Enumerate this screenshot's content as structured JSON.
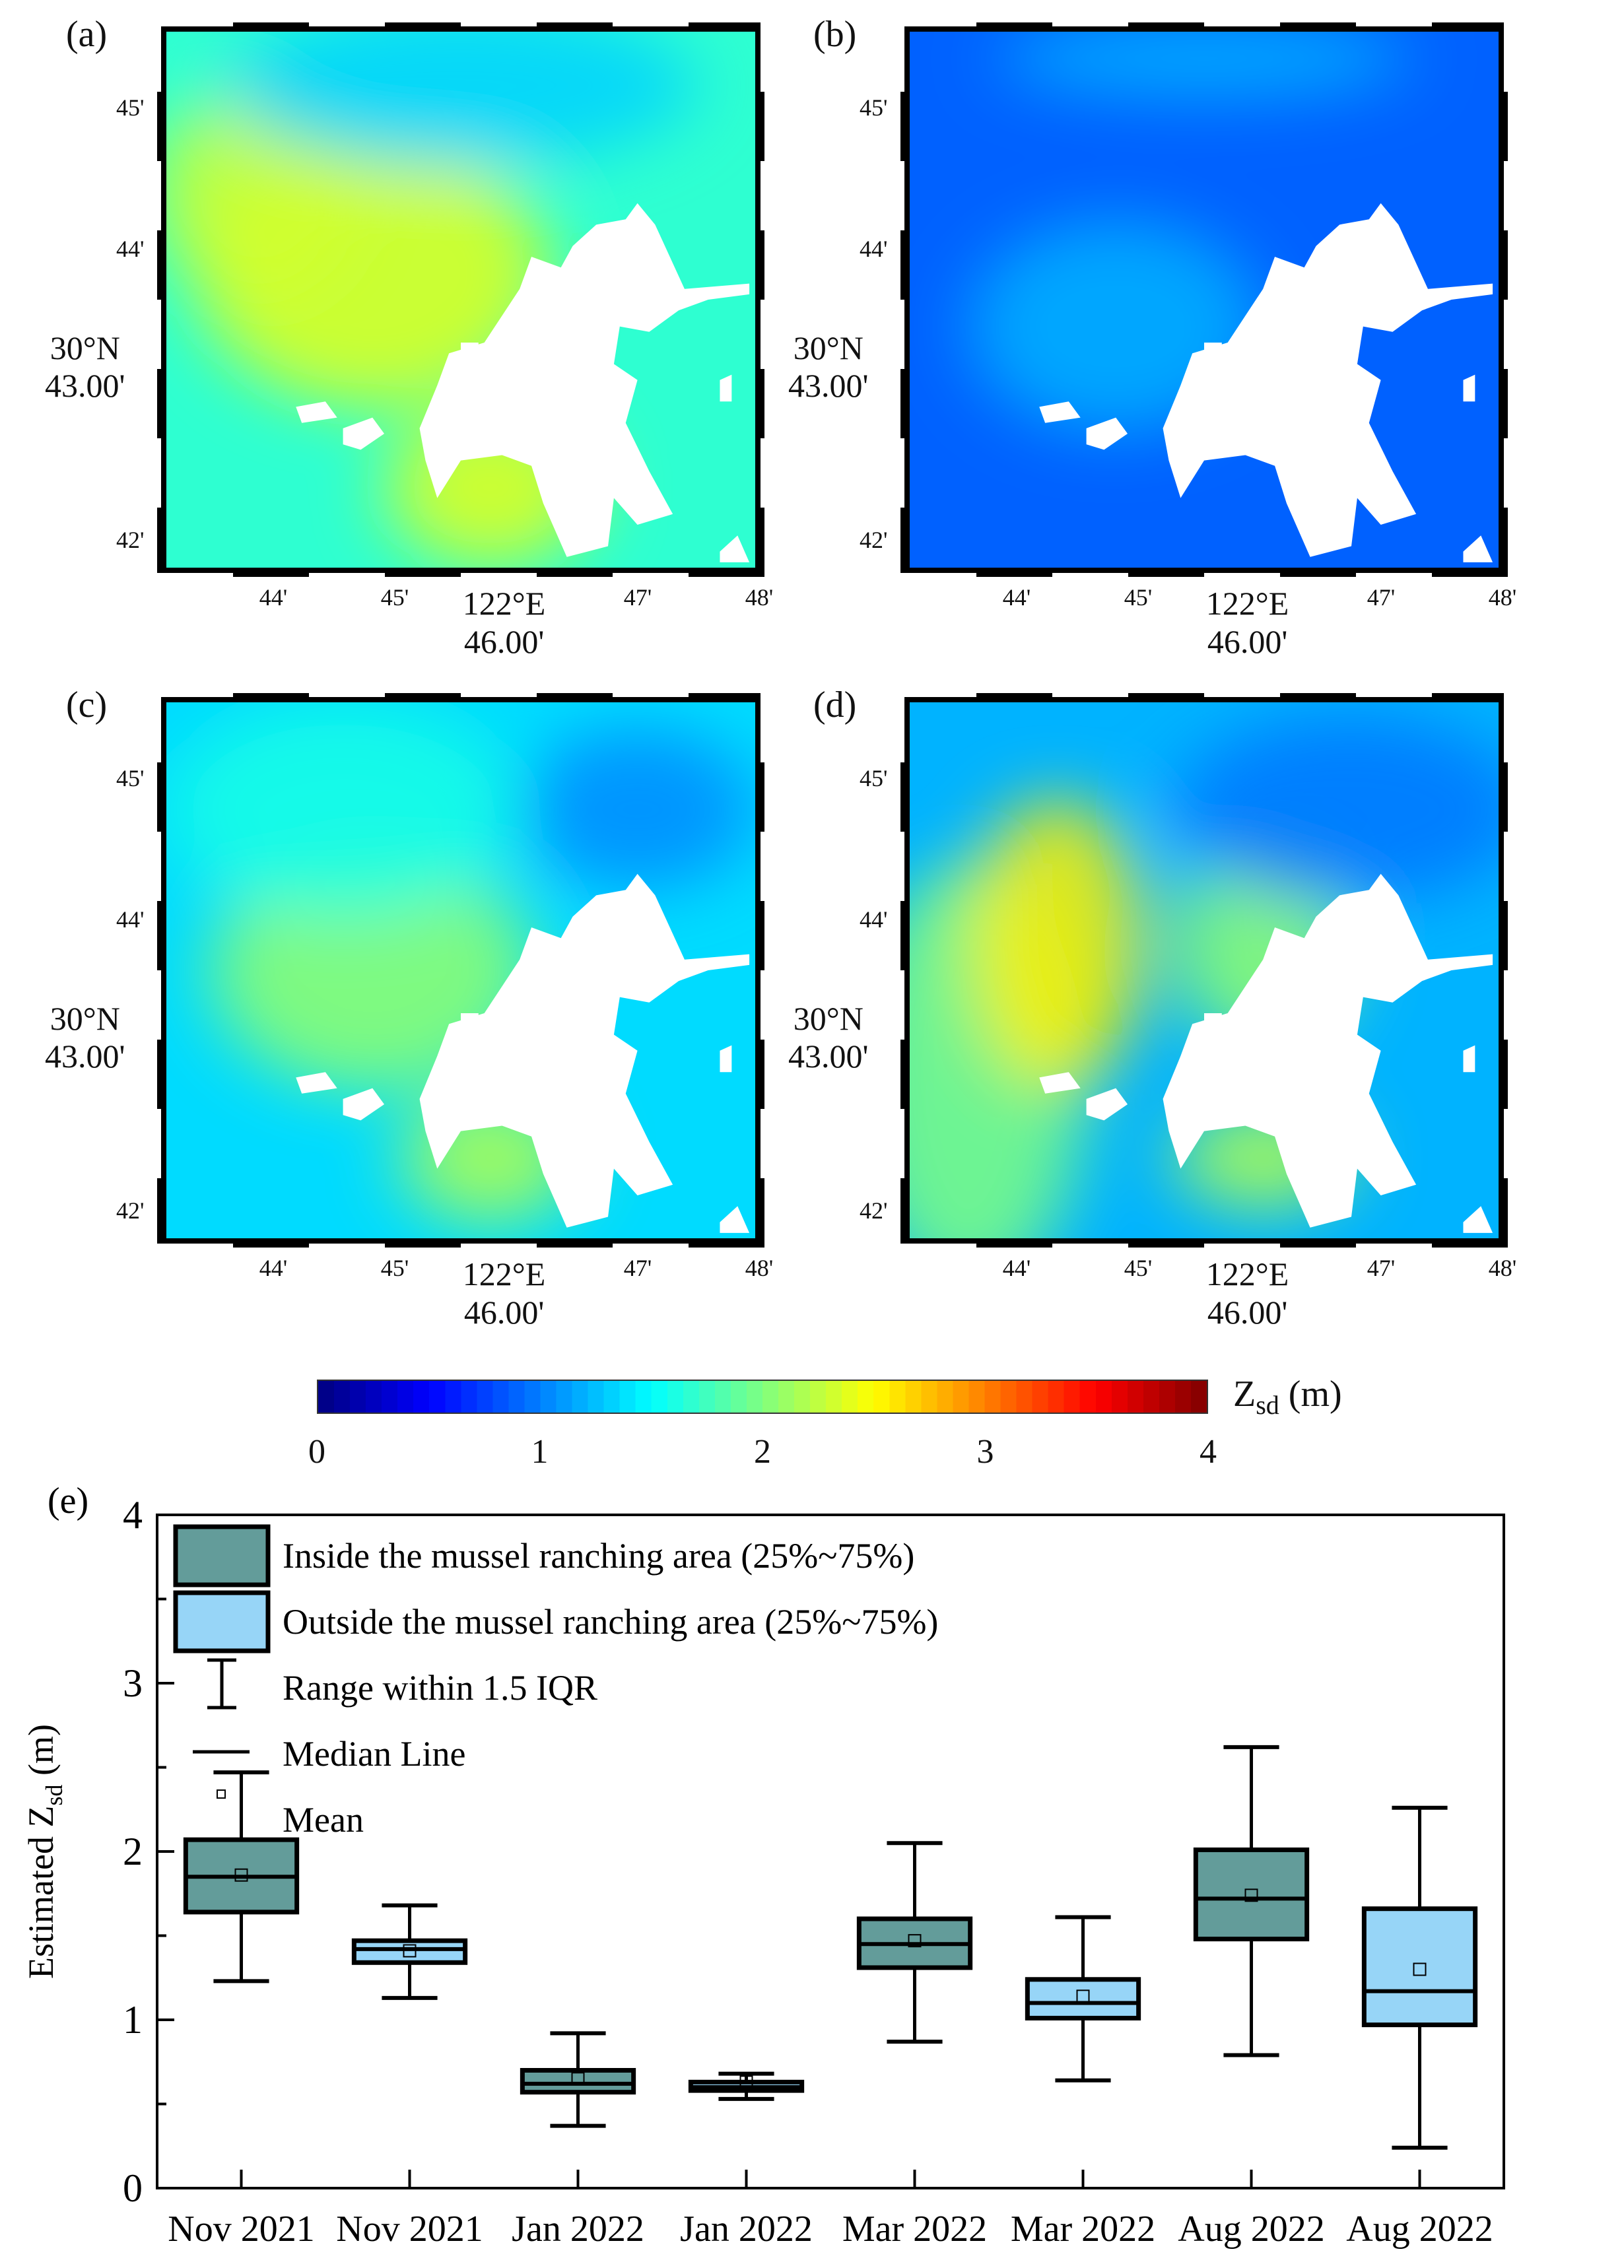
{
  "maps": [
    {
      "label": "(a)",
      "theme": "light"
    },
    {
      "label": "(b)",
      "theme": "dark"
    },
    {
      "label": "(c)",
      "theme": "mid"
    },
    {
      "label": "(d)",
      "theme": "mixed"
    }
  ],
  "map_axes": {
    "y_ticks": [
      "45'",
      "44'",
      "42'"
    ],
    "y_main": [
      "30°N",
      "43.00'"
    ],
    "x_ticks": [
      "44'",
      "45'",
      "47'",
      "48'"
    ],
    "x_main": [
      "122°E",
      "46.00'"
    ]
  },
  "colorbar": {
    "title_main": "Z",
    "title_sub": "sd",
    "title_unit": " (m)",
    "min": 0,
    "max": 4,
    "ticks": [
      "0",
      "1",
      "2",
      "3",
      "4"
    ],
    "colormap": "jet"
  },
  "chart_data": {
    "type": "box",
    "panel_label": "(e)",
    "ylabel_main": "Estimated Z",
    "ylabel_sub": "sd",
    "ylabel_unit": " (m)",
    "ylim": [
      0,
      4
    ],
    "yticks": [
      0,
      1,
      2,
      3,
      4
    ],
    "yminor_ticks": [
      0.5,
      1.5,
      2.5,
      3.5
    ],
    "categories": [
      "Nov 2021",
      "Nov 2021",
      "Jan 2022",
      "Jan 2022",
      "Mar 2022",
      "Mar 2022",
      "Aug 2022",
      "Aug 2022"
    ],
    "groups": [
      "inside",
      "outside",
      "inside",
      "outside",
      "inside",
      "outside",
      "inside",
      "outside"
    ],
    "boxes": [
      {
        "whisker_low": 1.23,
        "q1": 1.64,
        "median": 1.85,
        "mean": 1.86,
        "q3": 2.07,
        "whisker_high": 2.47
      },
      {
        "whisker_low": 1.13,
        "q1": 1.34,
        "median": 1.42,
        "mean": 1.41,
        "q3": 1.47,
        "whisker_high": 1.68
      },
      {
        "whisker_low": 0.37,
        "q1": 0.57,
        "median": 0.62,
        "mean": 0.65,
        "q3": 0.7,
        "whisker_high": 0.92
      },
      {
        "whisker_low": 0.53,
        "q1": 0.58,
        "median": 0.6,
        "mean": 0.63,
        "q3": 0.63,
        "whisker_high": 0.68
      },
      {
        "whisker_low": 0.87,
        "q1": 1.31,
        "median": 1.45,
        "mean": 1.47,
        "q3": 1.6,
        "whisker_high": 2.05
      },
      {
        "whisker_low": 0.64,
        "q1": 1.01,
        "median": 1.1,
        "mean": 1.14,
        "q3": 1.24,
        "whisker_high": 1.61
      },
      {
        "whisker_low": 0.79,
        "q1": 1.48,
        "median": 1.72,
        "mean": 1.74,
        "q3": 2.01,
        "whisker_high": 2.62
      },
      {
        "whisker_low": 0.24,
        "q1": 0.97,
        "median": 1.17,
        "mean": 1.3,
        "q3": 1.66,
        "whisker_high": 2.26
      }
    ],
    "colors": {
      "inside": "#639c9a",
      "outside": "#97d5f7"
    },
    "legend": {
      "position": "top-left",
      "entries": [
        {
          "key": "inside",
          "label": "Inside the mussel ranching area (25%~75%)"
        },
        {
          "key": "outside",
          "label": "Outside the mussel ranching area (25%~75%)"
        },
        {
          "key": "whisker",
          "label": "Range within 1.5 IQR"
        },
        {
          "key": "median",
          "label": "Median Line"
        },
        {
          "key": "mean",
          "label": "Mean"
        }
      ]
    }
  }
}
